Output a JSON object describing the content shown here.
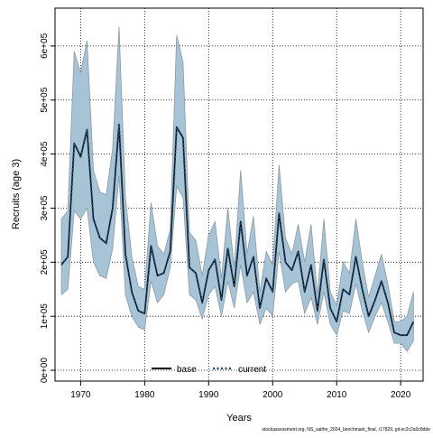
{
  "chart_data": {
    "type": "line",
    "xlabel": "Years",
    "ylabel": "Recruits (age 3)",
    "xlim": [
      1966,
      2023.5
    ],
    "ylim": [
      -20000,
      670000
    ],
    "x_ticks": [
      1970,
      1980,
      1990,
      2000,
      2010,
      2020
    ],
    "y_ticks": [
      0,
      100000,
      200000,
      300000,
      400000,
      500000,
      600000
    ],
    "y_tick_labels": [
      "0e+00",
      "1e+05",
      "2e+05",
      "3e+05",
      "4e+05",
      "5e+05",
      "6e+05"
    ],
    "grid": true,
    "legend_position": "bottom-center",
    "footer": "stockassessment.org, NS_saithe_2024_benchmark_final, r17829, git:ec2c2a0c8dde",
    "years": [
      1967,
      1968,
      1969,
      1970,
      1971,
      1972,
      1973,
      1974,
      1975,
      1976,
      1977,
      1978,
      1979,
      1980,
      1981,
      1982,
      1983,
      1984,
      1985,
      1986,
      1987,
      1988,
      1989,
      1990,
      1991,
      1992,
      1993,
      1994,
      1995,
      1996,
      1997,
      1998,
      1999,
      2000,
      2001,
      2002,
      2003,
      2004,
      2005,
      2006,
      2007,
      2008,
      2009,
      2010,
      2011,
      2012,
      2013,
      2014,
      2015,
      2016,
      2017,
      2018,
      2019,
      2020,
      2021,
      2022
    ],
    "confidence_band": {
      "color": "#a6c4d6",
      "stroke": "#8b9aa8",
      "upper": [
        280000,
        295000,
        590000,
        550000,
        610000,
        370000,
        330000,
        325000,
        410000,
        635000,
        320000,
        210000,
        155000,
        150000,
        310000,
        230000,
        215000,
        260000,
        620000,
        570000,
        255000,
        240000,
        175000,
        250000,
        275000,
        170000,
        300000,
        190000,
        370000,
        215000,
        285000,
        145000,
        220000,
        195000,
        380000,
        245000,
        215000,
        270000,
        200000,
        270000,
        140000,
        280000,
        145000,
        120000,
        200000,
        180000,
        280000,
        200000,
        135000,
        175000,
        215000,
        160000,
        90000,
        90000,
        100000,
        145000
      ],
      "lower": [
        140000,
        150000,
        295000,
        280000,
        300000,
        200000,
        175000,
        170000,
        225000,
        360000,
        140000,
        100000,
        80000,
        75000,
        165000,
        125000,
        140000,
        190000,
        340000,
        320000,
        140000,
        130000,
        95000,
        140000,
        155000,
        100000,
        165000,
        115000,
        195000,
        125000,
        145000,
        85000,
        115000,
        100000,
        220000,
        145000,
        160000,
        165000,
        105000,
        135000,
        85000,
        145000,
        85000,
        65000,
        110000,
        105000,
        160000,
        110000,
        70000,
        100000,
        125000,
        90000,
        50000,
        50000,
        35000,
        55000
      ]
    },
    "series": [
      {
        "name": "base",
        "color": "#000000",
        "style": "solid",
        "values": [
          195000,
          210000,
          420000,
          395000,
          445000,
          280000,
          245000,
          235000,
          300000,
          455000,
          215000,
          145000,
          110000,
          105000,
          230000,
          175000,
          180000,
          220000,
          450000,
          430000,
          190000,
          180000,
          125000,
          185000,
          205000,
          130000,
          225000,
          155000,
          275000,
          175000,
          210000,
          115000,
          170000,
          145000,
          290000,
          200000,
          185000,
          220000,
          145000,
          195000,
          110000,
          205000,
          115000,
          90000,
          150000,
          140000,
          210000,
          150000,
          100000,
          130000,
          165000,
          125000,
          70000,
          65000,
          65000,
          90000
        ]
      },
      {
        "name": "current",
        "color": "#1f4f77",
        "style": "dotted",
        "values": [
          195000,
          210000,
          420000,
          395000,
          445000,
          280000,
          245000,
          235000,
          300000,
          455000,
          215000,
          145000,
          110000,
          105000,
          230000,
          175000,
          180000,
          220000,
          450000,
          430000,
          190000,
          180000,
          125000,
          185000,
          205000,
          130000,
          225000,
          155000,
          275000,
          175000,
          210000,
          115000,
          170000,
          145000,
          290000,
          200000,
          185000,
          220000,
          145000,
          195000,
          110000,
          205000,
          115000,
          90000,
          150000,
          140000,
          210000,
          150000,
          100000,
          130000,
          165000,
          125000,
          70000,
          65000,
          65000,
          90000
        ]
      }
    ]
  }
}
